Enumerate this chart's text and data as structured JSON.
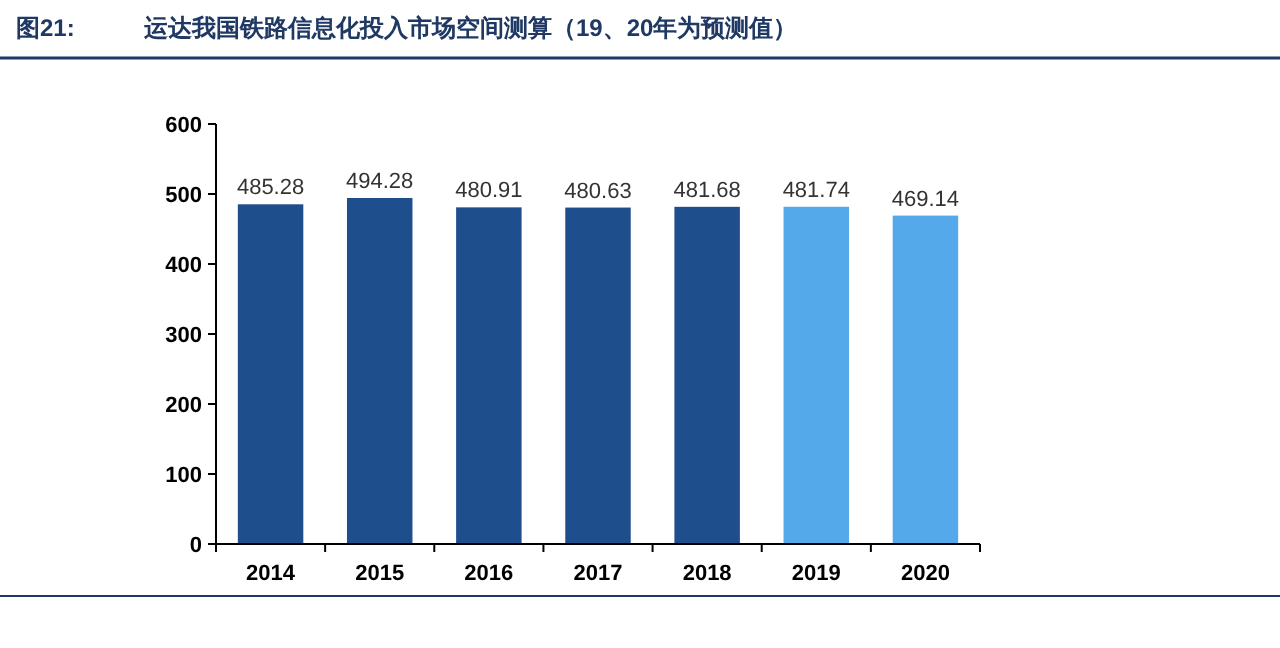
{
  "chart_data": {
    "type": "bar",
    "title": "图21:",
    "subtitle": "运达我国铁路信息化投入市场空间测算（19、20年为预测值）",
    "categories": [
      "2014",
      "2015",
      "2016",
      "2017",
      "2018",
      "2019",
      "2020"
    ],
    "values": [
      485.28,
      494.28,
      480.91,
      480.63,
      481.68,
      481.74,
      469.14
    ],
    "colors": [
      "#1f4e8c",
      "#1f4e8c",
      "#1f4e8c",
      "#1f4e8c",
      "#1f4e8c",
      "#53a9ea",
      "#53a9ea"
    ],
    "ylim": [
      0,
      600
    ],
    "yticks": [
      0,
      100,
      200,
      300,
      400,
      500,
      600
    ],
    "data_labels": true
  }
}
